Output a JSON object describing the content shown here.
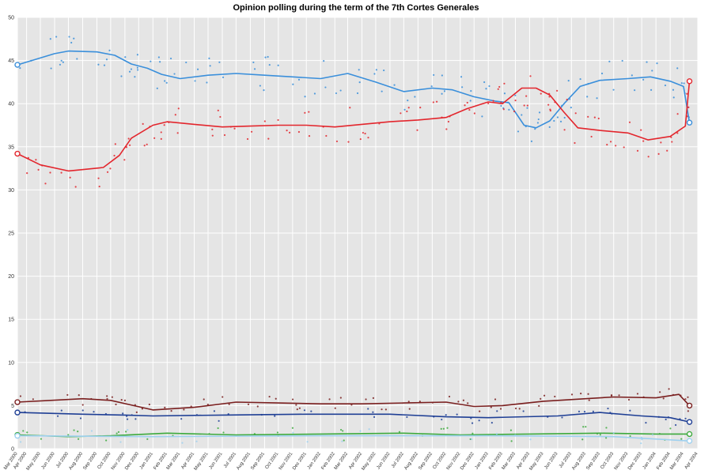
{
  "chart_data": {
    "type": "line",
    "title": "Opinion polling during the term of the 7th Cortes Generales",
    "xlabel": "",
    "ylabel": "",
    "ylim": [
      0,
      50
    ],
    "yticks": [
      0,
      5,
      10,
      15,
      20,
      25,
      30,
      35,
      40,
      45,
      50
    ],
    "xlim": [
      "2000-03-12",
      "2004-04-01"
    ],
    "xticks": [
      "Mar 2000",
      "Apr 2000",
      "May 2000",
      "Jun 2000",
      "Jul 2000",
      "Aug 2000",
      "Sep 2000",
      "Oct 2000",
      "Nov 2000",
      "Dec 2000",
      "Jan 2001",
      "Feb 2001",
      "Mar 2001",
      "Apr 2001",
      "May 2001",
      "Jun 2001",
      "Jul 2001",
      "Aug 2001",
      "Sep 2001",
      "Oct 2001",
      "Nov 2001",
      "Dec 2001",
      "Jan 2002",
      "Feb 2002",
      "Mar 2002",
      "Apr 2002",
      "May 2002",
      "Jun 2002",
      "Jul 2002",
      "Aug 2002",
      "Sep 2002",
      "Oct 2002",
      "Nov 2002",
      "Dec 2002",
      "Jan 2003",
      "Feb 2003",
      "Mar 2003",
      "Apr 2003",
      "May 2003",
      "Jun 2003",
      "Jul 2003",
      "Aug 2003",
      "Sep 2003",
      "Oct 2003",
      "Nov 2003",
      "Dec 2003",
      "Jan 2004",
      "Feb 2004",
      "Mar 2004",
      "Apr 2004"
    ],
    "grid": true,
    "legend": "none",
    "series": [
      {
        "color": "#3a8fdb",
        "x": [
          "2000-03-12",
          "2000-06-01",
          "2000-07-01",
          "2000-09-01",
          "2000-10-10",
          "2000-11-15",
          "2000-12-20",
          "2001-01-20",
          "2001-03-01",
          "2001-05-01",
          "2001-07-01",
          "2001-09-01",
          "2001-11-01",
          "2002-01-01",
          "2002-03-01",
          "2002-05-01",
          "2002-07-01",
          "2002-09-01",
          "2002-10-15",
          "2002-12-01",
          "2003-01-15",
          "2003-02-15",
          "2003-03-20",
          "2003-04-15",
          "2003-05-15",
          "2003-06-15",
          "2003-07-20",
          "2003-09-01",
          "2003-11-01",
          "2003-12-20",
          "2004-02-01",
          "2004-03-01",
          "2004-03-14"
        ],
        "y": [
          44.5,
          45.8,
          46.1,
          46.0,
          45.6,
          44.6,
          44.1,
          43.4,
          42.9,
          43.3,
          43.5,
          43.3,
          43.1,
          42.9,
          43.5,
          42.5,
          41.4,
          41.8,
          41.6,
          40.8,
          40.3,
          40.1,
          37.5,
          37.2,
          38.0,
          40.0,
          42.0,
          42.7,
          42.9,
          43.1,
          42.6,
          42.0,
          37.8
        ],
        "endpoints": [
          44.5,
          37.8
        ]
      },
      {
        "color": "#e3262d",
        "x": [
          "2000-03-12",
          "2000-05-01",
          "2000-07-01",
          "2000-09-15",
          "2000-10-20",
          "2000-11-15",
          "2001-01-01",
          "2001-02-01",
          "2001-04-01",
          "2001-06-01",
          "2001-08-01",
          "2001-10-01",
          "2001-12-01",
          "2002-02-01",
          "2002-04-01",
          "2002-06-01",
          "2002-08-01",
          "2002-10-01",
          "2002-11-15",
          "2003-01-01",
          "2003-02-01",
          "2003-03-15",
          "2003-04-15",
          "2003-05-15",
          "2003-06-15",
          "2003-07-15",
          "2003-09-01",
          "2003-11-01",
          "2003-12-15",
          "2004-02-01",
          "2004-03-05",
          "2004-03-14"
        ],
        "y": [
          34.2,
          32.9,
          32.2,
          32.6,
          34.0,
          36.0,
          37.5,
          37.9,
          37.6,
          37.3,
          37.4,
          37.5,
          37.5,
          37.3,
          37.6,
          37.9,
          38.1,
          38.4,
          39.4,
          40.2,
          40.0,
          41.8,
          41.8,
          41.0,
          39.0,
          37.2,
          36.9,
          36.6,
          35.8,
          36.2,
          37.4,
          42.6
        ],
        "endpoints": [
          34.2,
          42.6
        ]
      },
      {
        "color": "#7a1f1f",
        "x": [
          "2000-03-12",
          "2000-08-01",
          "2000-10-01",
          "2000-11-20",
          "2001-01-01",
          "2001-04-01",
          "2001-07-01",
          "2001-10-01",
          "2002-01-01",
          "2002-04-01",
          "2002-07-01",
          "2002-10-01",
          "2002-12-01",
          "2003-02-01",
          "2003-05-01",
          "2003-08-01",
          "2003-10-01",
          "2004-01-01",
          "2004-02-20",
          "2004-03-14"
        ],
        "y": [
          5.4,
          5.8,
          5.6,
          5.0,
          4.5,
          4.8,
          5.4,
          5.3,
          5.2,
          5.2,
          5.3,
          5.4,
          4.9,
          5.0,
          5.5,
          5.8,
          6.0,
          5.9,
          6.3,
          5.0
        ],
        "endpoints": [
          5.4,
          5.0
        ]
      },
      {
        "color": "#1f3f95",
        "x": [
          "2000-03-12",
          "2000-08-01",
          "2000-11-01",
          "2001-01-01",
          "2001-06-01",
          "2001-12-01",
          "2002-06-01",
          "2002-10-01",
          "2003-01-01",
          "2003-06-01",
          "2003-09-01",
          "2003-12-01",
          "2004-02-01",
          "2004-03-14"
        ],
        "y": [
          4.2,
          4.0,
          3.9,
          3.8,
          3.9,
          4.0,
          4.0,
          3.7,
          3.6,
          3.8,
          4.2,
          3.8,
          3.6,
          3.1
        ],
        "endpoints": [
          4.2,
          3.1
        ]
      },
      {
        "color": "#3daa3d",
        "x": [
          "2000-03-12",
          "2000-07-01",
          "2000-10-01",
          "2001-02-01",
          "2001-07-01",
          "2002-01-01",
          "2002-07-01",
          "2002-11-01",
          "2003-04-01",
          "2003-09-01",
          "2004-01-01",
          "2004-03-14"
        ],
        "y": [
          1.6,
          1.4,
          1.5,
          1.8,
          1.6,
          1.7,
          1.8,
          1.6,
          1.7,
          1.8,
          1.7,
          1.7
        ],
        "endpoints": [
          1.6,
          1.7
        ]
      },
      {
        "color": "#9fd1f0",
        "x": [
          "2000-03-12",
          "2001-01-01",
          "2002-01-01",
          "2003-01-01",
          "2003-10-01",
          "2004-03-14"
        ],
        "y": [
          1.5,
          1.4,
          1.5,
          1.5,
          1.4,
          0.9
        ],
        "endpoints": [
          1.5,
          0.9
        ]
      }
    ]
  }
}
